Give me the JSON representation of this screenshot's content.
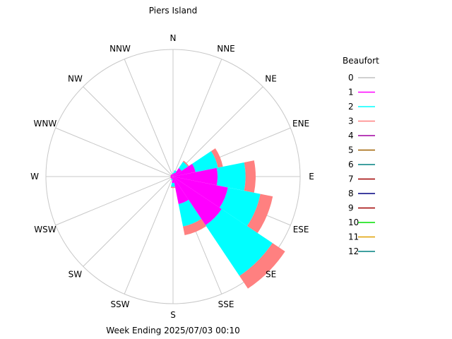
{
  "chart_data": {
    "type": "wind-rose",
    "title": "Piers Island",
    "footer": "Week Ending 2025/07/03 00:10",
    "directions": [
      "N",
      "NNE",
      "NE",
      "ENE",
      "E",
      "ESE",
      "SE",
      "SSE",
      "S",
      "SSW",
      "SW",
      "WSW",
      "W",
      "WNW",
      "NW",
      "NNW"
    ],
    "legend_title": "Beaufort",
    "legend": [
      {
        "level": "0",
        "color": "#c0c0c0"
      },
      {
        "level": "1",
        "color": "#ff00ff"
      },
      {
        "level": "2",
        "color": "#00ffff"
      },
      {
        "level": "3",
        "color": "#ff8080"
      },
      {
        "level": "4",
        "color": "#a000a0"
      },
      {
        "level": "5",
        "color": "#a06000"
      },
      {
        "level": "6",
        "color": "#008080"
      },
      {
        "level": "7",
        "color": "#a00000"
      },
      {
        "level": "8",
        "color": "#000080"
      },
      {
        "level": "9",
        "color": "#a00000"
      },
      {
        "level": "10",
        "color": "#00e000"
      },
      {
        "level": "11",
        "color": "#e0a000"
      },
      {
        "level": "12",
        "color": "#008080"
      }
    ],
    "series_by_direction": [
      {
        "dir": "N",
        "b1": 2,
        "b2": 1,
        "b3": 0
      },
      {
        "dir": "NNE",
        "b1": 3,
        "b2": 2,
        "b3": 0
      },
      {
        "dir": "NE",
        "b1": 8,
        "b2": 6,
        "b3": 1
      },
      {
        "dir": "ENE",
        "b1": 18,
        "b2": 18,
        "b3": 4
      },
      {
        "dir": "E",
        "b1": 35,
        "b2": 22,
        "b3": 8
      },
      {
        "dir": "ESE",
        "b1": 44,
        "b2": 26,
        "b3": 10
      },
      {
        "dir": "SE",
        "b1": 46,
        "b2": 48,
        "b3": 12
      },
      {
        "dir": "SSE",
        "b1": 22,
        "b2": 18,
        "b3": 7
      },
      {
        "dir": "S",
        "b1": 5,
        "b2": 3,
        "b3": 1
      },
      {
        "dir": "SSW",
        "b1": 2,
        "b2": 1,
        "b3": 0
      },
      {
        "dir": "SW",
        "b1": 2,
        "b2": 0,
        "b3": 0
      },
      {
        "dir": "WSW",
        "b1": 2,
        "b2": 0,
        "b3": 0
      },
      {
        "dir": "W",
        "b1": 2,
        "b2": 0,
        "b3": 0
      },
      {
        "dir": "WNW",
        "b1": 2,
        "b2": 0,
        "b3": 0
      },
      {
        "dir": "NW",
        "b1": 2,
        "b2": 0,
        "b3": 0
      },
      {
        "dir": "NNW",
        "b1": 2,
        "b2": 0,
        "b3": 0
      }
    ],
    "ring_max": 100,
    "grid": true
  }
}
